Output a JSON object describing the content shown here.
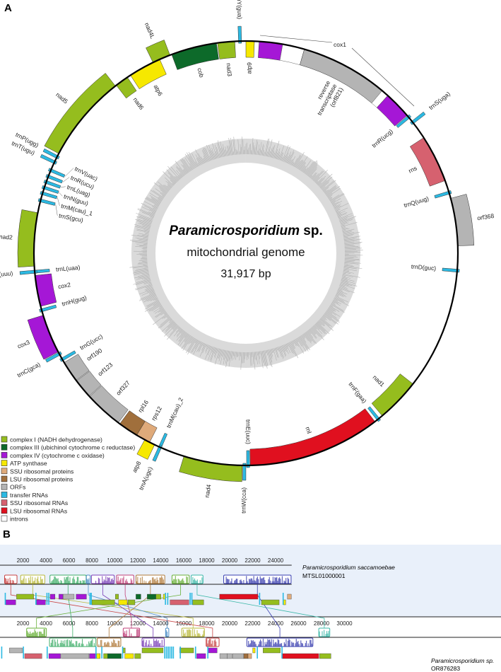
{
  "panel_a": {
    "letter": "A",
    "genome_length_bp": 31917,
    "title_italic": "Paramicrosporidium",
    "title_suffix": " sp.",
    "subtitle": "mitochondrial genome",
    "size_text": "31,917 bp",
    "cox1_label": "cox1",
    "colors": {
      "c1": "#95bd1e",
      "c3": "#0d6a2a",
      "c4": "#a517d6",
      "atp": "#f6e800",
      "ssup": "#dfaa7a",
      "lsup": "#a06f3c",
      "orf": "#b4b4b4",
      "trna": "#2cb9e2",
      "ssur": "#d6616f",
      "lsur": "#e0101f",
      "intron": "#ffffff"
    },
    "features": [
      {
        "name": "atp9",
        "cat": "atp",
        "s": 0,
        "e": 204,
        "strand": "in",
        "label": "atp9"
      },
      {
        "name": "cox1-exon1",
        "cat": "c4",
        "s": 319,
        "e": 887,
        "strand": "in",
        "label": ""
      },
      {
        "name": "cox1-intron1",
        "cat": "intron",
        "s": 887,
        "e": 1419,
        "strand": "in",
        "label": ""
      },
      {
        "name": "reverse-transcriptase",
        "cat": "orf",
        "s": 1419,
        "e": 3546,
        "strand": "in",
        "label": [
          "reverse",
          "transcriptase",
          "(orf821)"
        ]
      },
      {
        "name": "cox1-intron2",
        "cat": "intron",
        "s": 3546,
        "e": 3724,
        "strand": "in",
        "label": ""
      },
      {
        "name": "cox1-exon3",
        "cat": "c4",
        "s": 3724,
        "e": 4389,
        "strand": "in",
        "label": ""
      },
      {
        "name": "trnR-ucg",
        "cat": "trna",
        "s": 4406,
        "e": 4477,
        "strand": "in",
        "label": "trnR(ucg)"
      },
      {
        "name": "trnS-uga",
        "cat": "trna",
        "s": 4566,
        "e": 4637,
        "strand": "out",
        "label": "trnS(uga)"
      },
      {
        "name": "rns",
        "cat": "ssur",
        "s": 5054,
        "e": 6206,
        "strand": "in",
        "label": "rns"
      },
      {
        "name": "trnQ-uug",
        "cat": "trna",
        "s": 6472,
        "e": 6543,
        "strand": "in",
        "label": "trnQ(uug)"
      },
      {
        "name": "orf368",
        "cat": "orf",
        "s": 6650,
        "e": 7802,
        "strand": "out",
        "label": "orf368"
      },
      {
        "name": "trnD-guc",
        "cat": "trna",
        "s": 8361,
        "e": 8432,
        "strand": "in",
        "label": "trnD(guc)"
      },
      {
        "name": "nad1",
        "cat": "c1",
        "s": 11348,
        "e": 12412,
        "strand": "in",
        "label": "nad1"
      },
      {
        "name": "trnF-gaa",
        "cat": "trna",
        "s": 12501,
        "e": 12572,
        "strand": "in",
        "label": "trnF(gaa)"
      },
      {
        "name": "rnl",
        "cat": "lsur",
        "s": 12634,
        "e": 15852,
        "strand": "in",
        "label": "rnl"
      },
      {
        "name": "trnE-uuc",
        "cat": "trna",
        "s": 15870,
        "e": 15941,
        "strand": "in",
        "label": "trnE(uuc)"
      },
      {
        "name": "trnW-cca",
        "cat": "trna",
        "s": 15959,
        "e": 16030,
        "strand": "out",
        "label": "trnW(cca)"
      },
      {
        "name": "nad4",
        "cat": "c1",
        "s": 16047,
        "e": 17466,
        "strand": "out",
        "label": "nad4"
      },
      {
        "name": "trnM-cau-2",
        "cat": "trna",
        "s": 18043,
        "e": 18113,
        "strand": "in",
        "label": "trnM(cau)_2"
      },
      {
        "name": "trnA-ugc",
        "cat": "trna",
        "s": 18043,
        "e": 18113,
        "strand": "out",
        "label": "trnA(ugc)"
      },
      {
        "name": "atp8",
        "cat": "atp",
        "s": 18220,
        "e": 18486,
        "strand": "out",
        "label": "atp8"
      },
      {
        "name": "rps12",
        "cat": "ssup",
        "s": 18353,
        "e": 18707,
        "strand": "in",
        "label": "rps12"
      },
      {
        "name": "rpl16",
        "cat": "lsup",
        "s": 18707,
        "e": 19195,
        "strand": "in",
        "label": "rpl16"
      },
      {
        "name": "orf327",
        "cat": "orf",
        "s": 19239,
        "e": 20170,
        "strand": "in",
        "label": "orf327"
      },
      {
        "name": "orf123",
        "cat": "orf",
        "s": 20188,
        "e": 20658,
        "strand": "in",
        "label": "orf123"
      },
      {
        "name": "orf190",
        "cat": "orf",
        "s": 20676,
        "e": 21190,
        "strand": "in",
        "label": "orf190"
      },
      {
        "name": "trnG-ucc",
        "cat": "trna",
        "s": 21243,
        "e": 21314,
        "strand": "in",
        "label": "trnG(ucc)"
      },
      {
        "name": "trnC-gca",
        "cat": "trna",
        "s": 21393,
        "e": 21464,
        "strand": "out",
        "label": "trnC(gca)"
      },
      {
        "name": "cox3",
        "cat": "c4",
        "s": 21482,
        "e": 22431,
        "strand": "out",
        "label": "cox3"
      },
      {
        "name": "trnH-gug",
        "cat": "trna",
        "s": 22520,
        "e": 22591,
        "strand": "in",
        "label": "trnH(gug)"
      },
      {
        "name": "cox2",
        "cat": "c4",
        "s": 22653,
        "e": 23406,
        "strand": "in",
        "label": "cox2"
      },
      {
        "name": "trnL-uaa",
        "cat": "trna",
        "s": 23459,
        "e": 23530,
        "strand": "in",
        "label": "trnL(uaa)"
      },
      {
        "name": "trnK-uuu",
        "cat": "trna",
        "s": 23459,
        "e": 23530,
        "strand": "out",
        "label": "trnK(uuu)"
      },
      {
        "name": "nad2",
        "cat": "c1",
        "s": 23628,
        "e": 24913,
        "strand": "out",
        "label": "nad2"
      },
      {
        "name": "trnS-gcu",
        "cat": "trna",
        "s": 25179,
        "e": 25250,
        "strand": "in",
        "label": "trnS(gcu)"
      },
      {
        "name": "trnM-cau-1",
        "cat": "trna",
        "s": 25357,
        "e": 25427,
        "strand": "in",
        "label": "trnM(cau)_1"
      },
      {
        "name": "trnN-guu",
        "cat": "trna",
        "s": 25499,
        "e": 25569,
        "strand": "in",
        "label": "trnN(guu)"
      },
      {
        "name": "trnL-uag",
        "cat": "trna",
        "s": 25640,
        "e": 25711,
        "strand": "in",
        "label": "trnL(uag)"
      },
      {
        "name": "trnR-ucu",
        "cat": "trna",
        "s": 25782,
        "e": 25853,
        "strand": "in",
        "label": "trnR(ucu)"
      },
      {
        "name": "trnV-uac",
        "cat": "trna",
        "s": 25942,
        "e": 26012,
        "strand": "in",
        "label": "trnV(uac)"
      },
      {
        "name": "trnT-ugu",
        "cat": "trna",
        "s": 26155,
        "e": 26226,
        "strand": "out",
        "label": "trnT(ugu)"
      },
      {
        "name": "trnP-ugg",
        "cat": "trna",
        "s": 26297,
        "e": 26367,
        "strand": "out",
        "label": "trnP(ugg)"
      },
      {
        "name": "nad5",
        "cat": "c1",
        "s": 26421,
        "e": 28549,
        "strand": "out",
        "label": "nad5"
      },
      {
        "name": "nad6",
        "cat": "c1",
        "s": 28575,
        "e": 28903,
        "strand": "in",
        "label": "nad6"
      },
      {
        "name": "atp6",
        "cat": "atp",
        "s": 28992,
        "e": 29790,
        "strand": "in",
        "label": "atp6"
      },
      {
        "name": "nad4L",
        "cat": "c1",
        "s": 29613,
        "e": 30056,
        "strand": "out",
        "label": "nad4L"
      },
      {
        "name": "cob",
        "cat": "c3",
        "s": 30099,
        "e": 31208,
        "strand": "in",
        "label": "cob"
      },
      {
        "name": "nad3",
        "cat": "c1",
        "s": 31234,
        "e": 31651,
        "strand": "in",
        "label": "nad3"
      },
      {
        "name": "trnY-gua",
        "cat": "trna",
        "s": 31740,
        "e": 31811,
        "strand": "out",
        "label": "trnY(gua)"
      }
    ],
    "legend": [
      {
        "cat": "c1",
        "text": "complex I (NADH dehydrogenase)"
      },
      {
        "cat": "c3",
        "text": "complex III (ubichinol cytochrome c reductase)"
      },
      {
        "cat": "c4",
        "text": "complex IV (cytochrome c oxidase)"
      },
      {
        "cat": "atp",
        "text": "ATP synthase"
      },
      {
        "cat": "ssup",
        "text": "SSU ribosomal proteins"
      },
      {
        "cat": "lsup",
        "text": "LSU ribosomal proteins"
      },
      {
        "cat": "orf",
        "text": "ORFs"
      },
      {
        "cat": "trna",
        "text": "transfer RNAs"
      },
      {
        "cat": "ssur",
        "text": "SSU ribosomal RNAs"
      },
      {
        "cat": "lsur",
        "text": "LSU ribosomal RNAs"
      },
      {
        "cat": "intron",
        "text": "introns"
      }
    ]
  },
  "panel_b": {
    "letter": "B",
    "top_genome": {
      "species": "Paramicrosporidium saccamoebae",
      "accession": "MTSL01000001",
      "ticks": [
        2000,
        4000,
        6000,
        8000,
        10000,
        12000,
        14000,
        16000,
        18000,
        20000,
        22000,
        24000
      ],
      "length": 25400
    },
    "bottom_genome": {
      "species": "Paramicrosporidium sp.",
      "accession": "OR876283",
      "ticks": [
        2000,
        4000,
        6000,
        8000,
        10000,
        12000,
        14000,
        16000,
        18000,
        20000,
        22000,
        24000,
        26000,
        28000,
        30000
      ],
      "length": 31917
    },
    "blocks": [
      {
        "color": "#c94545",
        "top": [
          400,
          1480
        ],
        "bottom": [
          17950,
          19080
        ],
        "bottom_side": "below"
      },
      {
        "color": "#b8b83a",
        "top": [
          1800,
          3900
        ],
        "bottom": [
          15830,
          17800
        ],
        "bottom_side": "above"
      },
      {
        "color": "#3fae6a",
        "top": [
          4350,
          7500
        ],
        "bottom": [
          4310,
          8350
        ],
        "bottom_side": "below"
      },
      {
        "color": "#4d8fc7",
        "top": [
          7520,
          7860
        ],
        "bottom": [
          14420,
          14700
        ],
        "bottom_side": "above"
      },
      {
        "color": "#7a3fb8",
        "top": [
          7960,
          9950
        ],
        "bottom": [
          12370,
          14300
        ],
        "bottom_side": "below"
      },
      {
        "color": "#c0407a",
        "top": [
          10150,
          11650
        ],
        "bottom": [
          10730,
          12160
        ],
        "bottom_side": "above"
      },
      {
        "color": "#b07a3a",
        "top": [
          11850,
          14350
        ],
        "bottom": [
          8470,
          10520
        ],
        "bottom_side": "below"
      },
      {
        "color": "#68b038",
        "top": [
          14980,
          16480
        ],
        "bottom": [
          2320,
          4040
        ],
        "bottom_side": "above"
      },
      {
        "color": "#3cb8a8",
        "top": [
          16650,
          17680
        ],
        "bottom": [
          27760,
          28720
        ],
        "bottom_side": "above"
      },
      {
        "color": "#3a3fb0",
        "top": [
          19480,
          25350
        ],
        "bottom": [
          21500,
          27250
        ],
        "bottom_side": "below"
      }
    ],
    "top_genes": [
      {
        "cat": "c1",
        "s": 1440,
        "e": 2930,
        "row": 0
      },
      {
        "cat": "c4",
        "s": 4370,
        "e": 4790,
        "row": 0
      },
      {
        "cat": "c4",
        "s": 5130,
        "e": 5480,
        "row": 0
      },
      {
        "cat": "orf",
        "s": 5500,
        "e": 6460,
        "row": 0
      },
      {
        "cat": "c4",
        "s": 6630,
        "e": 7530,
        "row": 0
      },
      {
        "cat": "c1",
        "s": 10050,
        "e": 10320,
        "row": 0
      },
      {
        "cat": "c3",
        "s": 11840,
        "e": 12270,
        "row": 0
      },
      {
        "cat": "c3",
        "s": 12820,
        "e": 13580,
        "row": 0
      },
      {
        "cat": "c1",
        "s": 13580,
        "e": 14010,
        "row": 0
      },
      {
        "cat": "atp",
        "s": 14220,
        "e": 14420,
        "row": 0
      },
      {
        "cat": "lsur",
        "s": 19120,
        "e": 22460,
        "row": 0
      },
      {
        "cat": "ssup",
        "s": 25030,
        "e": 25370,
        "row": 0
      },
      {
        "cat": "c4",
        "s": 510,
        "e": 1370,
        "row": 1
      },
      {
        "cat": "c4",
        "s": 3180,
        "e": 3960,
        "row": 1
      },
      {
        "cat": "c1",
        "s": 8000,
        "e": 9990,
        "row": 1
      },
      {
        "cat": "atp",
        "s": 10320,
        "e": 11080,
        "row": 1
      },
      {
        "cat": "c1",
        "s": 11140,
        "e": 11750,
        "row": 1
      },
      {
        "cat": "ssur",
        "s": 14810,
        "e": 16450,
        "row": 1
      },
      {
        "cat": "c1",
        "s": 16780,
        "e": 17740,
        "row": 1
      },
      {
        "cat": "c1",
        "s": 22770,
        "e": 24310,
        "row": 1
      },
      {
        "cat": "atp",
        "s": 24680,
        "e": 24880,
        "row": 1
      }
    ],
    "top_trnas": [
      410,
      3080,
      4040,
      4200,
      7790,
      7900,
      14360,
      14560,
      16510,
      16660,
      22560,
      24610
    ],
    "bottom_genes": [
      {
        "cat": "orf",
        "s": 820,
        "e": 1950,
        "row": 0
      },
      {
        "cat": "c1",
        "s": 10670,
        "e": 10910,
        "row": 0
      },
      {
        "cat": "c1",
        "s": 12370,
        "e": 14210,
        "row": 0
      },
      {
        "cat": "c1",
        "s": 15650,
        "e": 16860,
        "row": 0
      },
      {
        "cat": "c4",
        "s": 18150,
        "e": 18910,
        "row": 0
      },
      {
        "cat": "atp",
        "s": 22010,
        "e": 22220,
        "row": 0
      },
      {
        "cat": "c1",
        "s": 22910,
        "e": 24410,
        "row": 0
      },
      {
        "cat": "ssur",
        "s": 2150,
        "e": 3650,
        "row": 1
      },
      {
        "cat": "c4",
        "s": 4250,
        "e": 5270,
        "row": 1
      },
      {
        "cat": "orf",
        "s": 5330,
        "e": 7750,
        "row": 1
      },
      {
        "cat": "c4",
        "s": 7790,
        "e": 8370,
        "row": 1
      },
      {
        "cat": "atp",
        "s": 8410,
        "e": 8720,
        "row": 1
      },
      {
        "cat": "c1",
        "s": 9020,
        "e": 9370,
        "row": 1
      },
      {
        "cat": "c3",
        "s": 9370,
        "e": 10560,
        "row": 1
      },
      {
        "cat": "atp",
        "s": 10870,
        "e": 11630,
        "row": 1
      },
      {
        "cat": "c1",
        "s": 11730,
        "e": 12250,
        "row": 1
      },
      {
        "cat": "c4",
        "s": 17130,
        "e": 17910,
        "row": 1
      },
      {
        "cat": "orf",
        "s": 19140,
        "e": 19800,
        "row": 1
      },
      {
        "cat": "orf",
        "s": 19800,
        "e": 20200,
        "row": 1
      },
      {
        "cat": "orf",
        "s": 20250,
        "e": 21230,
        "row": 1
      },
      {
        "cat": "lsup",
        "s": 21230,
        "e": 21600,
        "row": 1
      },
      {
        "cat": "ssup",
        "s": 21600,
        "e": 21910,
        "row": 1
      },
      {
        "cat": "lsur",
        "s": 24580,
        "e": 27760,
        "row": 1
      },
      {
        "cat": "c1",
        "s": 27830,
        "e": 28820,
        "row": 1
      }
    ],
    "bottom_trnas": [
      100,
      1990,
      4060,
      8310,
      8820,
      10630,
      14300,
      14450,
      14600,
      14750,
      14900,
      15050,
      15650,
      16980,
      18050,
      22360,
      24510
    ]
  }
}
